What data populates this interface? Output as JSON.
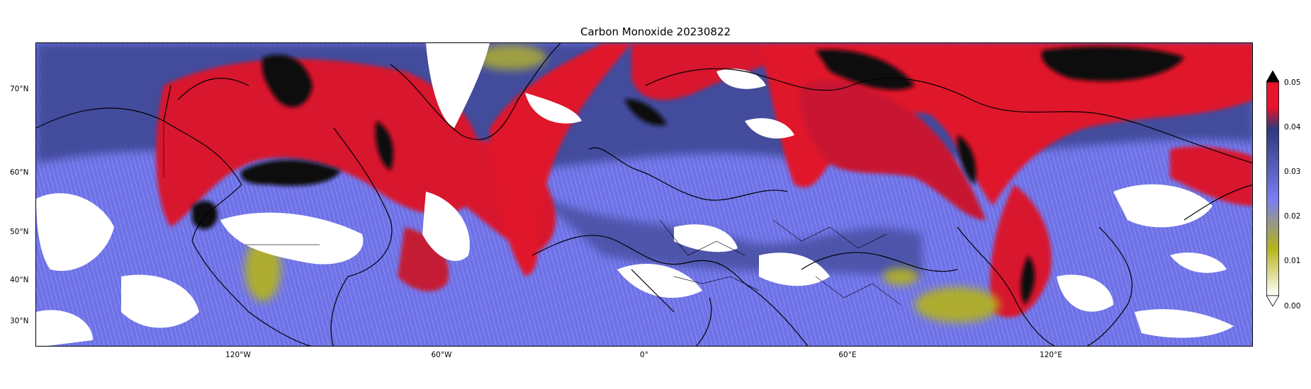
{
  "title": "Carbon Monoxide 20230822",
  "map": {
    "region": "Northern hemisphere, 180°W to 180°E, ~26°N to ~80°N",
    "lat_ticks": [
      "70°N",
      "60°N",
      "50°N",
      "40°N",
      "30°N"
    ],
    "lon_ticks": [
      "120°W",
      "60°W",
      "0°",
      "60°E",
      "120°E"
    ]
  },
  "colorbar": {
    "ticks": [
      "0.05",
      "0.04",
      "0.03",
      "0.02",
      "0.01",
      "0.00"
    ],
    "min": 0.0,
    "max": 0.05,
    "extend": "both",
    "colors": {
      "low": "#ffffff",
      "olive": "#b5b31a",
      "periwinkle": "#7b7ef0",
      "navy": "#2b3a7c",
      "red": "#e8132c",
      "max": "#000000"
    }
  }
}
